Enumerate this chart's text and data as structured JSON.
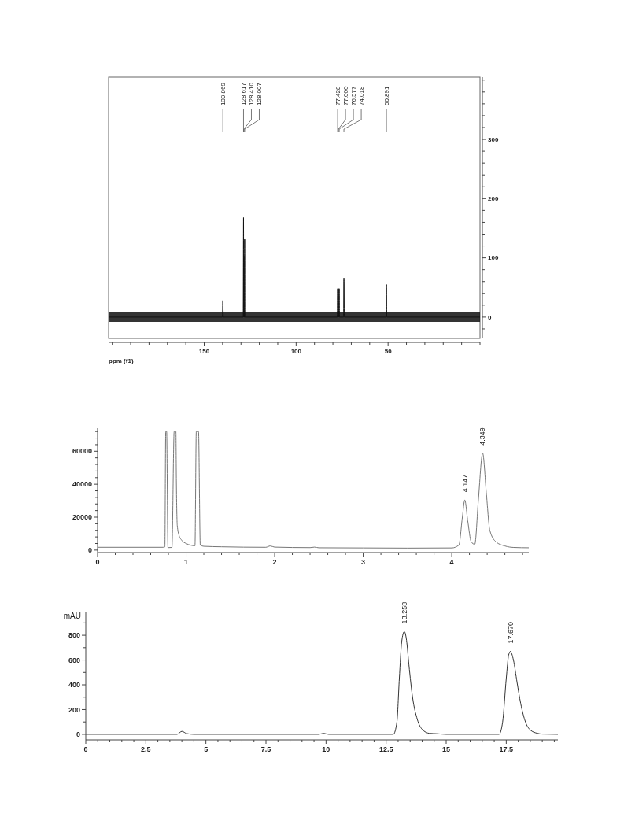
{
  "chart_data": [
    {
      "type": "line",
      "xlabel": "ppm (f1)",
      "xlim": [
        202,
        0
      ],
      "ylim": [
        -36,
        405
      ],
      "xticks": [
        {
          "value": 200,
          "label": null
        },
        {
          "value": 190,
          "label": null
        },
        {
          "value": 180,
          "label": null
        },
        {
          "value": 170,
          "label": null
        },
        {
          "value": 160,
          "label": null
        },
        150,
        {
          "value": 140,
          "label": null
        },
        {
          "value": 130,
          "label": null
        },
        {
          "value": 120,
          "label": null
        },
        {
          "value": 110,
          "label": null
        },
        100,
        {
          "value": 90,
          "label": null
        },
        {
          "value": 80,
          "label": null
        },
        {
          "value": 70,
          "label": null
        },
        {
          "value": 60,
          "label": null
        },
        50,
        {
          "value": 40,
          "label": null
        },
        {
          "value": 30,
          "label": null
        },
        {
          "value": 20,
          "label": null
        },
        {
          "value": 10,
          "label": null
        },
        {
          "value": 0,
          "label": null
        }
      ],
      "yticks": [
        {
          "value": -20,
          "label": null
        },
        0,
        {
          "value": 20,
          "label": null
        },
        {
          "value": 40,
          "label": null
        },
        {
          "value": 60,
          "label": null
        },
        {
          "value": 80,
          "label": null
        },
        100,
        {
          "value": 120,
          "label": null
        },
        {
          "value": 140,
          "label": null
        },
        {
          "value": 160,
          "label": null
        },
        {
          "value": 180,
          "label": null
        },
        200,
        {
          "value": 220,
          "label": null
        },
        {
          "value": 240,
          "label": null
        },
        {
          "value": 260,
          "label": null
        },
        {
          "value": 280,
          "label": null
        },
        300,
        {
          "value": 320,
          "label": null
        },
        {
          "value": 340,
          "label": null
        },
        {
          "value": 360,
          "label": null
        },
        {
          "value": 380,
          "label": null
        },
        {
          "value": 400,
          "label": null
        }
      ],
      "grid": false,
      "marker": "none",
      "line_style": "solid",
      "series": [
        {
          "color": "#111111",
          "x": [
            202,
            140.1,
            139.869,
            139.6,
            128.8,
            128.617,
            128.5,
            128.41,
            128.3,
            128.1,
            128.007,
            127.9,
            77.6,
            77.428,
            77.3,
            77.0,
            76.8,
            76.577,
            76.4,
            74.2,
            74.018,
            73.8,
            51.1,
            50.891,
            50.7,
            0
          ],
          "values": [
            0,
            0,
            28,
            0,
            0,
            168,
            0,
            103,
            0,
            0,
            132,
            0,
            0,
            48,
            0,
            48,
            0,
            48,
            0,
            0,
            66,
            0,
            0,
            55,
            0,
            0
          ],
          "lower": [
            -8,
            -8,
            -8,
            -8,
            -8,
            -8,
            -8,
            -8,
            -8,
            -8,
            -8,
            -8,
            -8,
            -8,
            -8,
            -8,
            -8,
            -8,
            -8,
            -8,
            -8,
            -8,
            -8,
            -8,
            -8,
            -8
          ],
          "upper": [
            8,
            8,
            8,
            8,
            8,
            8,
            8,
            8,
            8,
            8,
            8,
            8,
            8,
            8,
            8,
            8,
            8,
            8,
            8,
            8,
            8,
            8,
            8,
            8,
            8,
            8
          ]
        }
      ],
      "annotations": [
        {
          "text": "139.869",
          "x": 139.869
        },
        {
          "text": "128.617",
          "x": 128.617
        },
        {
          "text": "128.410",
          "x": 128.41
        },
        {
          "text": "128.007",
          "x": 128.007
        },
        {
          "text": "77.428",
          "x": 77.428
        },
        {
          "text": "77.000",
          "x": 77.0
        },
        {
          "text": "76.577",
          "x": 76.577
        },
        {
          "text": "74.018",
          "x": 74.018
        },
        {
          "text": "50.891",
          "x": 50.891
        }
      ]
    },
    {
      "type": "line",
      "xlim": [
        0,
        4.87
      ],
      "ylim": [
        -1500,
        74000
      ],
      "xticks": [
        0,
        {
          "value": 0.2,
          "label": null
        },
        {
          "value": 0.4,
          "label": null
        },
        {
          "value": 0.6,
          "label": null
        },
        {
          "value": 0.8,
          "label": null
        },
        1,
        {
          "value": 1.2,
          "label": null
        },
        {
          "value": 1.4,
          "label": null
        },
        {
          "value": 1.6,
          "label": null
        },
        {
          "value": 1.8,
          "label": null
        },
        2,
        {
          "value": 2.2,
          "label": null
        },
        {
          "value": 2.4,
          "label": null
        },
        {
          "value": 2.6,
          "label": null
        },
        {
          "value": 2.8,
          "label": null
        },
        3,
        {
          "value": 3.2,
          "label": null
        },
        {
          "value": 3.4,
          "label": null
        },
        {
          "value": 3.6,
          "label": null
        },
        {
          "value": 3.8,
          "label": null
        },
        4,
        {
          "value": 4.2,
          "label": null
        },
        {
          "value": 4.4,
          "label": null
        },
        {
          "value": 4.6,
          "label": null
        },
        {
          "value": 4.8,
          "label": null
        }
      ],
      "yticks": [
        0,
        {
          "value": 4000,
          "label": null
        },
        {
          "value": 8000,
          "label": null
        },
        {
          "value": 12000,
          "label": null
        },
        {
          "value": 16000,
          "label": null
        },
        20000,
        {
          "value": 24000,
          "label": null
        },
        {
          "value": 28000,
          "label": null
        },
        {
          "value": 32000,
          "label": null
        },
        {
          "value": 36000,
          "label": null
        },
        40000,
        {
          "value": 44000,
          "label": null
        },
        {
          "value": 48000,
          "label": null
        },
        {
          "value": 52000,
          "label": null
        },
        {
          "value": 56000,
          "label": null
        },
        60000,
        {
          "value": 64000,
          "label": null
        },
        {
          "value": 68000,
          "label": null
        },
        {
          "value": 72000,
          "label": null
        }
      ],
      "grid": false,
      "marker": "none",
      "line_style": "solid",
      "series": [
        {
          "color": "#777777",
          "x": [
            0,
            0.74,
            0.76,
            0.77,
            0.78,
            0.795,
            0.84,
            0.865,
            0.885,
            0.89,
            0.9,
            0.92,
            0.95,
            1.0,
            1.05,
            1.1,
            1.115,
            1.14,
            1.16,
            1.2,
            1.4,
            1.9,
            1.95,
            2.0,
            2.4,
            2.45,
            2.5,
            3.0,
            3.5,
            4.0,
            4.08,
            4.12,
            4.147,
            4.18,
            4.22,
            4.26,
            4.3,
            4.349,
            4.39,
            4.43,
            4.5,
            4.6,
            4.7,
            4.87
          ],
          "values": [
            1700,
            1700,
            1900,
            72000,
            72000,
            1500,
            1600,
            72000,
            72000,
            42000,
            15000,
            9000,
            6000,
            4000,
            3000,
            2600,
            72000,
            72000,
            3000,
            2300,
            2000,
            1700,
            2500,
            1800,
            1500,
            1800,
            1400,
            1300,
            1200,
            1300,
            3000,
            20000,
            30400,
            18000,
            5000,
            3500,
            30000,
            58800,
            35000,
            12000,
            5000,
            2500,
            1600,
            1400
          ]
        }
      ],
      "annotations": [
        {
          "text": "4.147",
          "x": 4.147,
          "y": 30400
        },
        {
          "text": "4.349",
          "x": 4.349,
          "y": 58800
        }
      ]
    },
    {
      "type": "line",
      "ylabel": "mAU",
      "xlim": [
        0,
        19.65
      ],
      "ylim": [
        -45,
        985
      ],
      "xticks": [
        0,
        {
          "value": 0.5,
          "label": null
        },
        {
          "value": 1,
          "label": null
        },
        {
          "value": 1.5,
          "label": null
        },
        {
          "value": 2,
          "label": null
        },
        2.5,
        {
          "value": 3,
          "label": null
        },
        {
          "value": 3.5,
          "label": null
        },
        {
          "value": 4,
          "label": null
        },
        {
          "value": 4.5,
          "label": null
        },
        5,
        {
          "value": 5.5,
          "label": null
        },
        {
          "value": 6,
          "label": null
        },
        {
          "value": 6.5,
          "label": null
        },
        {
          "value": 7,
          "label": null
        },
        7.5,
        {
          "value": 8,
          "label": null
        },
        {
          "value": 8.5,
          "label": null
        },
        {
          "value": 9,
          "label": null
        },
        {
          "value": 9.5,
          "label": null
        },
        10,
        {
          "value": 10.5,
          "label": null
        },
        {
          "value": 11,
          "label": null
        },
        {
          "value": 11.5,
          "label": null
        },
        {
          "value": 12,
          "label": null
        },
        12.5,
        {
          "value": 13,
          "label": null
        },
        {
          "value": 13.5,
          "label": null
        },
        {
          "value": 14,
          "label": null
        },
        {
          "value": 14.5,
          "label": null
        },
        15,
        {
          "value": 15.5,
          "label": null
        },
        {
          "value": 16,
          "label": null
        },
        {
          "value": 16.5,
          "label": null
        },
        {
          "value": 17,
          "label": null
        },
        17.5,
        {
          "value": 18,
          "label": null
        },
        {
          "value": 18.5,
          "label": null
        },
        {
          "value": 19,
          "label": null
        },
        {
          "value": 19.5,
          "label": null
        }
      ],
      "yticks": [
        0,
        {
          "value": 100,
          "label": null
        },
        200,
        {
          "value": 300,
          "label": null
        },
        400,
        {
          "value": 500,
          "label": null
        },
        600,
        {
          "value": 700,
          "label": null
        },
        800,
        {
          "value": 900,
          "label": null
        }
      ],
      "grid": false,
      "marker": "none",
      "line_style": "solid",
      "series": [
        {
          "color": "#333333",
          "x": [
            0,
            3.8,
            4.0,
            4.2,
            4.5,
            9.7,
            9.9,
            10.1,
            12.8,
            12.95,
            13.05,
            13.15,
            13.258,
            13.35,
            13.45,
            13.6,
            13.8,
            14.0,
            14.3,
            14.6,
            15,
            17.2,
            17.35,
            17.5,
            17.6,
            17.67,
            17.8,
            17.95,
            18.1,
            18.3,
            18.5,
            18.8,
            19.0,
            19.65
          ],
          "values": [
            0,
            0,
            24,
            6,
            0,
            0,
            8,
            0,
            0,
            100,
            450,
            750,
            830,
            760,
            560,
            300,
            120,
            40,
            8,
            5,
            0,
            0,
            100,
            450,
            640,
            670,
            600,
            420,
            250,
            100,
            35,
            8,
            2,
            0
          ]
        }
      ],
      "annotations": [
        {
          "text": "13.258",
          "x": 13.258,
          "y": 830
        },
        {
          "text": "17.670",
          "x": 17.67,
          "y": 670
        }
      ]
    }
  ]
}
